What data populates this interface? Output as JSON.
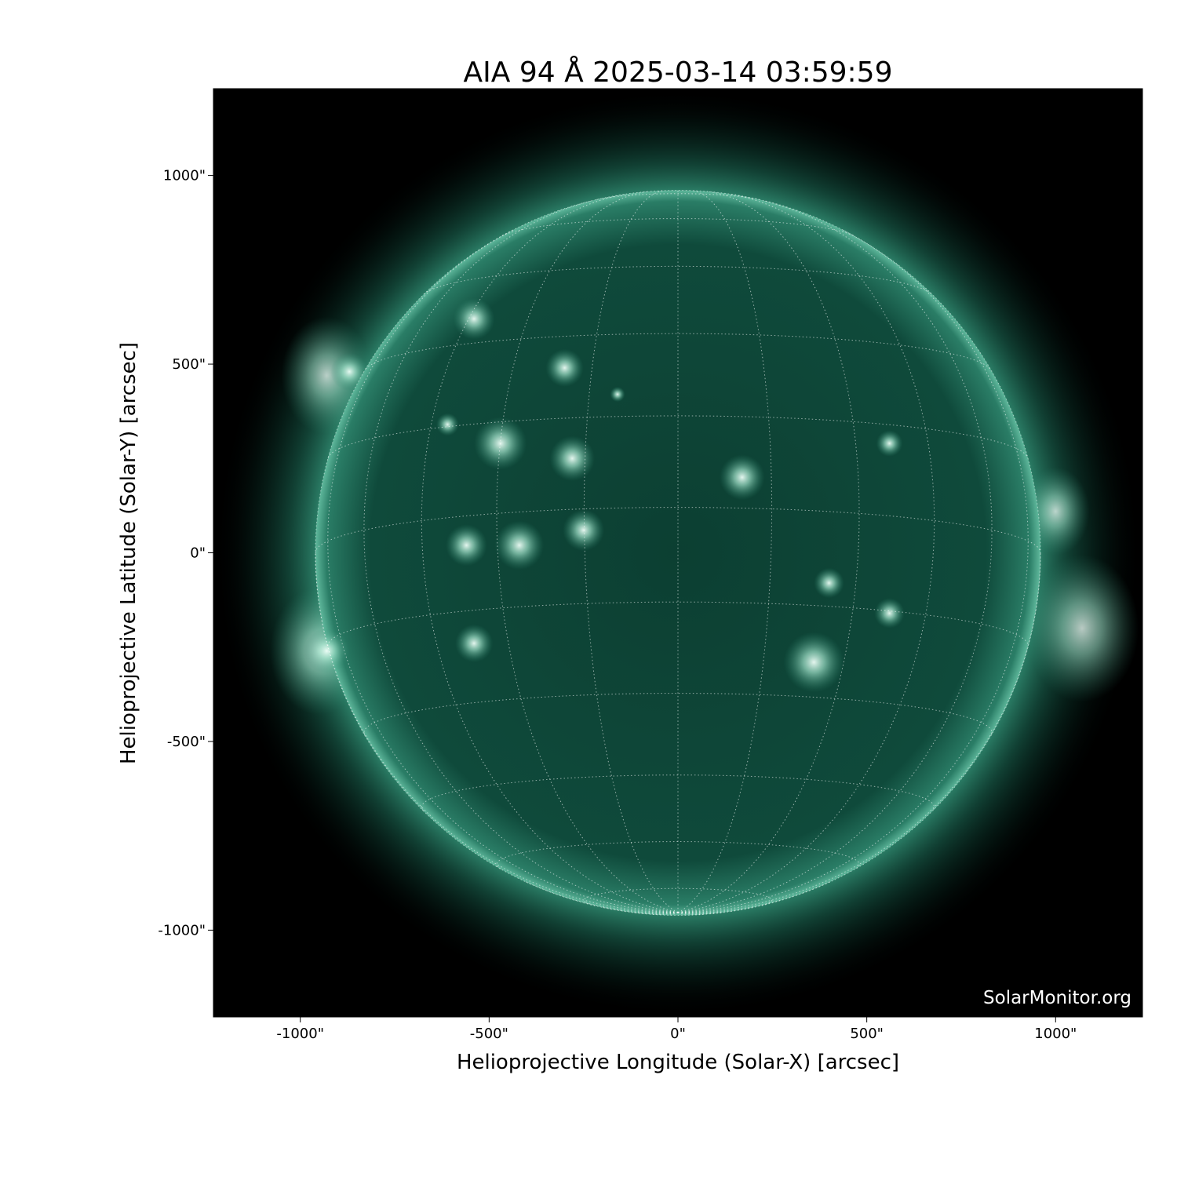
{
  "title": "AIA 94 Å 2025-03-14 03:59:59",
  "watermark": "SolarMonitor.org",
  "colors": {
    "disk": "#0b4436",
    "bright": "#e6fff6",
    "background": "#000000",
    "grid": "#ffffff"
  },
  "chart_data": {
    "type": "heatmap",
    "title": "AIA 94 Å 2025-03-14 03:59:59",
    "xlabel": "Helioprojective Longitude (Solar-X) [arcsec]",
    "ylabel": "Helioprojective Latitude (Solar-Y) [arcsec]",
    "xlim": [
      -1230,
      1230
    ],
    "ylim": [
      -1230,
      1230
    ],
    "xticks": [
      -1000,
      -500,
      0,
      500,
      1000
    ],
    "yticks": [
      -1000,
      -500,
      0,
      500,
      1000
    ],
    "xtick_labels": [
      "-1000\"",
      "-500\"",
      "0\"",
      "500\"",
      "1000\""
    ],
    "ytick_labels": [
      "-1000\"",
      "-500\"",
      "0\"",
      "500\"",
      "1000\""
    ],
    "grid": "heliographic dotted grid, 15° spacing",
    "colormap": "sdoaia94"
  }
}
